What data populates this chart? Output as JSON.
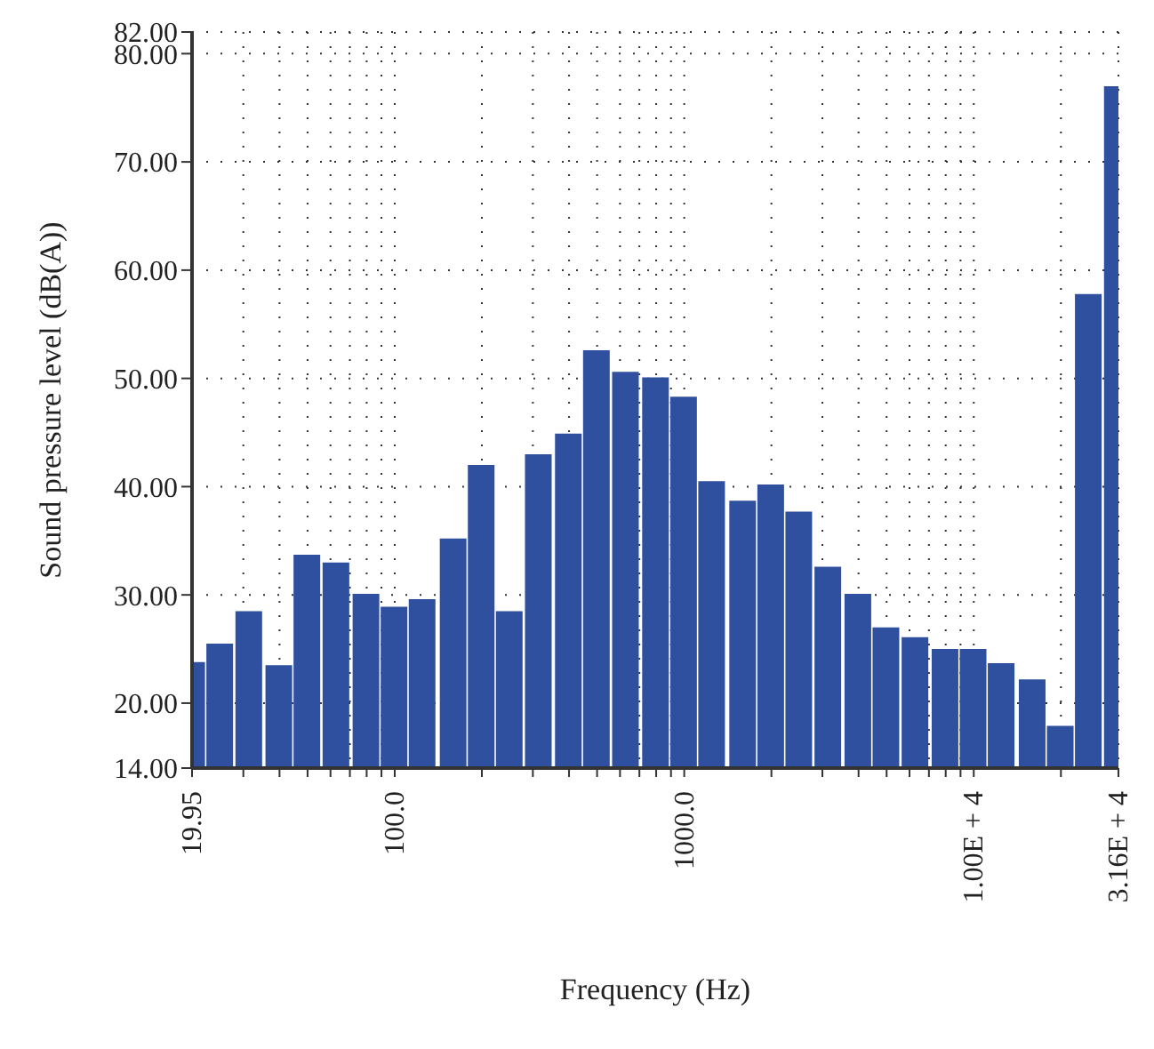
{
  "chart_data": {
    "type": "bar",
    "xlabel": "Frequency (Hz)",
    "ylabel": "Sound pressure level (dB(A))",
    "x": [
      20,
      25,
      31.5,
      40,
      50,
      63,
      80,
      100,
      125,
      160,
      200,
      250,
      315,
      400,
      500,
      630,
      800,
      1000,
      1250,
      1600,
      2000,
      2500,
      3150,
      4000,
      5000,
      6300,
      8000,
      10000,
      12500,
      16000,
      20000,
      25000,
      31500
    ],
    "values": [
      23.8,
      25.5,
      28.5,
      23.5,
      33.7,
      33.0,
      30.1,
      28.9,
      29.6,
      35.2,
      42.0,
      28.5,
      43.0,
      44.9,
      52.6,
      50.6,
      50.1,
      48.3,
      40.5,
      38.7,
      40.2,
      37.7,
      32.6,
      30.1,
      27.0,
      26.1,
      25.0,
      25.0,
      23.7,
      22.2,
      17.9,
      57.8,
      77.0
    ],
    "color": "#2f4f9f",
    "log": "x",
    "grid": true,
    "xlim": [
      19.95,
      31600
    ],
    "xticks": [
      {
        "value": 19.95,
        "label": "19.95"
      },
      {
        "value": 30,
        "label": null
      },
      {
        "value": 40,
        "label": null
      },
      {
        "value": 50,
        "label": null
      },
      {
        "value": 60,
        "label": null
      },
      {
        "value": 70,
        "label": null
      },
      {
        "value": 80,
        "label": null
      },
      {
        "value": 90,
        "label": null
      },
      {
        "value": 100,
        "label": "100.0"
      },
      {
        "value": 200,
        "label": null
      },
      {
        "value": 300,
        "label": null
      },
      {
        "value": 400,
        "label": null
      },
      {
        "value": 500,
        "label": null
      },
      {
        "value": 600,
        "label": null
      },
      {
        "value": 700,
        "label": null
      },
      {
        "value": 800,
        "label": null
      },
      {
        "value": 900,
        "label": null
      },
      {
        "value": 1000,
        "label": "1000.0"
      },
      {
        "value": 2000,
        "label": null
      },
      {
        "value": 3000,
        "label": null
      },
      {
        "value": 4000,
        "label": null
      },
      {
        "value": 5000,
        "label": null
      },
      {
        "value": 6000,
        "label": null
      },
      {
        "value": 7000,
        "label": null
      },
      {
        "value": 8000,
        "label": null
      },
      {
        "value": 9000,
        "label": null
      },
      {
        "value": 10000,
        "label": "1.00E + 4"
      },
      {
        "value": 20000,
        "label": null
      },
      {
        "value": 31600,
        "label": "3.16E + 4"
      }
    ],
    "ylim": [
      14,
      82
    ],
    "yticks": [
      {
        "value": 14,
        "label": "14.00"
      },
      {
        "value": 20,
        "label": "20.00"
      },
      {
        "value": 30,
        "label": "30.00"
      },
      {
        "value": 40,
        "label": "40.00"
      },
      {
        "value": 50,
        "label": "50.00"
      },
      {
        "value": 60,
        "label": "60.00"
      },
      {
        "value": 70,
        "label": "70.00"
      },
      {
        "value": 80,
        "label": "80.00"
      },
      {
        "value": 82,
        "label": "82.00"
      }
    ]
  }
}
